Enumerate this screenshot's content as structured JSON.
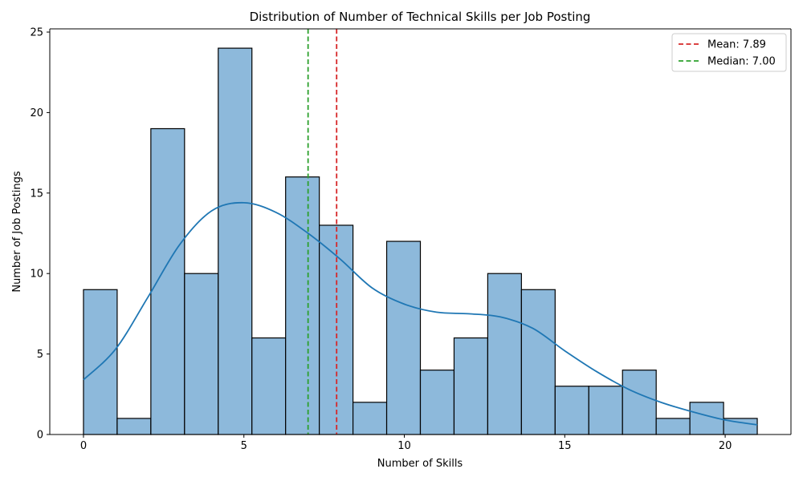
{
  "chart_data": {
    "type": "bar",
    "subtype": "histogram",
    "title": "Distribution of Number of Technical Skills per Job Posting",
    "xlabel": "Number of Skills",
    "ylabel": "Number of Job Postings",
    "xlim": [
      -1.05,
      22.05
    ],
    "ylim": [
      0,
      25.2
    ],
    "xticks": [
      0,
      5,
      10,
      15,
      20
    ],
    "yticks": [
      0,
      5,
      10,
      15,
      20,
      25
    ],
    "bins": {
      "edges": [
        0,
        1.05,
        2.1,
        3.15,
        4.2,
        5.25,
        6.3,
        7.35,
        8.4,
        9.45,
        10.5,
        11.55,
        12.6,
        13.65,
        14.7,
        15.75,
        16.8,
        17.85,
        18.9,
        19.95,
        21
      ],
      "counts": [
        9,
        1,
        19,
        10,
        24,
        6,
        16,
        13,
        2,
        12,
        4,
        6,
        10,
        9,
        3,
        3,
        4,
        1,
        2,
        1
      ]
    },
    "kde": {
      "x": [
        0,
        1,
        2,
        3,
        4,
        5,
        6,
        7,
        8,
        9,
        10,
        11,
        12,
        13,
        14,
        15,
        16,
        17,
        18,
        19,
        20,
        21
      ],
      "y": [
        3.4,
        5.3,
        8.5,
        11.8,
        13.9,
        14.4,
        13.8,
        12.5,
        10.9,
        9.1,
        8.1,
        7.6,
        7.5,
        7.3,
        6.6,
        5.2,
        3.9,
        2.8,
        2.0,
        1.4,
        0.9,
        0.6
      ]
    },
    "reference_lines": [
      {
        "name": "Mean",
        "x": 7.89,
        "color": "#d62728",
        "label": "Mean: 7.89"
      },
      {
        "name": "Median",
        "x": 7.0,
        "color": "#2ca02c",
        "label": "Median: 7.00"
      }
    ],
    "colors": {
      "bar_fill": "#8db9db",
      "bar_edge": "#000000",
      "kde_line": "#1f77b4"
    },
    "grid": false,
    "legend_position": "top-right"
  }
}
